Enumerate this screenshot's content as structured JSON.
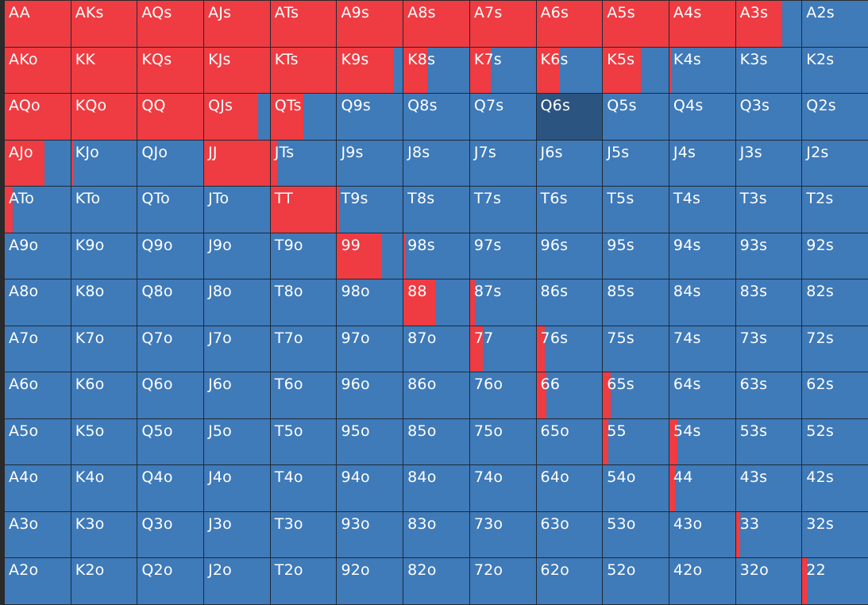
{
  "colors": {
    "raise": "#ef3b42",
    "fold": "#3f7ab9",
    "selected": "#2c5480",
    "grid_line": "#1f2a36"
  },
  "selected_hand": "Q6s",
  "rows": [
    [
      {
        "hand": "AA",
        "raise": 1
      },
      {
        "hand": "AKs",
        "raise": 1
      },
      {
        "hand": "AQs",
        "raise": 1
      },
      {
        "hand": "AJs",
        "raise": 1
      },
      {
        "hand": "ATs",
        "raise": 1
      },
      {
        "hand": "A9s",
        "raise": 1
      },
      {
        "hand": "A8s",
        "raise": 1
      },
      {
        "hand": "A7s",
        "raise": 1
      },
      {
        "hand": "A6s",
        "raise": 1
      },
      {
        "hand": "A5s",
        "raise": 1
      },
      {
        "hand": "A4s",
        "raise": 1
      },
      {
        "hand": "A3s",
        "raise": 0.71
      },
      {
        "hand": "A2s",
        "raise": 0
      }
    ],
    [
      {
        "hand": "AKo",
        "raise": 1
      },
      {
        "hand": "KK",
        "raise": 1
      },
      {
        "hand": "KQs",
        "raise": 1
      },
      {
        "hand": "KJs",
        "raise": 1
      },
      {
        "hand": "KTs",
        "raise": 1
      },
      {
        "hand": "K9s",
        "raise": 0.86
      },
      {
        "hand": "K8s",
        "raise": 0.36
      },
      {
        "hand": "K7s",
        "raise": 0.32
      },
      {
        "hand": "K6s",
        "raise": 0.36
      },
      {
        "hand": "K5s",
        "raise": 0.58
      },
      {
        "hand": "K4s",
        "raise": 0.02
      },
      {
        "hand": "K3s",
        "raise": 0
      },
      {
        "hand": "K2s",
        "raise": 0
      }
    ],
    [
      {
        "hand": "AQo",
        "raise": 1
      },
      {
        "hand": "KQo",
        "raise": 1
      },
      {
        "hand": "QQ",
        "raise": 1
      },
      {
        "hand": "QJs",
        "raise": 0.82
      },
      {
        "hand": "QTs",
        "raise": 0.5
      },
      {
        "hand": "Q9s",
        "raise": 0
      },
      {
        "hand": "Q8s",
        "raise": 0
      },
      {
        "hand": "Q7s",
        "raise": 0
      },
      {
        "hand": "Q6s",
        "raise": 0
      },
      {
        "hand": "Q5s",
        "raise": 0
      },
      {
        "hand": "Q4s",
        "raise": 0
      },
      {
        "hand": "Q3s",
        "raise": 0
      },
      {
        "hand": "Q2s",
        "raise": 0
      }
    ],
    [
      {
        "hand": "AJo",
        "raise": 0.6
      },
      {
        "hand": "KJo",
        "raise": 0.04
      },
      {
        "hand": "QJo",
        "raise": 0
      },
      {
        "hand": "JJ",
        "raise": 1
      },
      {
        "hand": "JTs",
        "raise": 0.11
      },
      {
        "hand": "J9s",
        "raise": 0
      },
      {
        "hand": "J8s",
        "raise": 0
      },
      {
        "hand": "J7s",
        "raise": 0
      },
      {
        "hand": "J6s",
        "raise": 0
      },
      {
        "hand": "J5s",
        "raise": 0
      },
      {
        "hand": "J4s",
        "raise": 0
      },
      {
        "hand": "J3s",
        "raise": 0
      },
      {
        "hand": "J2s",
        "raise": 0
      }
    ],
    [
      {
        "hand": "ATo",
        "raise": 0.12
      },
      {
        "hand": "KTo",
        "raise": 0
      },
      {
        "hand": "QTo",
        "raise": 0
      },
      {
        "hand": "JTo",
        "raise": 0
      },
      {
        "hand": "TT",
        "raise": 0.99
      },
      {
        "hand": "T9s",
        "raise": 0.04
      },
      {
        "hand": "T8s",
        "raise": 0
      },
      {
        "hand": "T7s",
        "raise": 0
      },
      {
        "hand": "T6s",
        "raise": 0
      },
      {
        "hand": "T5s",
        "raise": 0
      },
      {
        "hand": "T4s",
        "raise": 0
      },
      {
        "hand": "T3s",
        "raise": 0
      },
      {
        "hand": "T2s",
        "raise": 0
      }
    ],
    [
      {
        "hand": "A9o",
        "raise": 0
      },
      {
        "hand": "K9o",
        "raise": 0
      },
      {
        "hand": "Q9o",
        "raise": 0
      },
      {
        "hand": "J9o",
        "raise": 0
      },
      {
        "hand": "T9o",
        "raise": 0
      },
      {
        "hand": "99",
        "raise": 0.68
      },
      {
        "hand": "98s",
        "raise": 0.02
      },
      {
        "hand": "97s",
        "raise": 0
      },
      {
        "hand": "96s",
        "raise": 0
      },
      {
        "hand": "95s",
        "raise": 0
      },
      {
        "hand": "94s",
        "raise": 0
      },
      {
        "hand": "93s",
        "raise": 0
      },
      {
        "hand": "92s",
        "raise": 0
      }
    ],
    [
      {
        "hand": "A8o",
        "raise": 0
      },
      {
        "hand": "K8o",
        "raise": 0
      },
      {
        "hand": "Q8o",
        "raise": 0
      },
      {
        "hand": "J8o",
        "raise": 0
      },
      {
        "hand": "T8o",
        "raise": 0
      },
      {
        "hand": "98o",
        "raise": 0
      },
      {
        "hand": "88",
        "raise": 0.48
      },
      {
        "hand": "87s",
        "raise": 0.08
      },
      {
        "hand": "86s",
        "raise": 0
      },
      {
        "hand": "85s",
        "raise": 0
      },
      {
        "hand": "84s",
        "raise": 0
      },
      {
        "hand": "83s",
        "raise": 0
      },
      {
        "hand": "82s",
        "raise": 0
      }
    ],
    [
      {
        "hand": "A7o",
        "raise": 0
      },
      {
        "hand": "K7o",
        "raise": 0
      },
      {
        "hand": "Q7o",
        "raise": 0
      },
      {
        "hand": "J7o",
        "raise": 0
      },
      {
        "hand": "T7o",
        "raise": 0
      },
      {
        "hand": "97o",
        "raise": 0
      },
      {
        "hand": "87o",
        "raise": 0
      },
      {
        "hand": "77",
        "raise": 0.2
      },
      {
        "hand": "76s",
        "raise": 0.13
      },
      {
        "hand": "75s",
        "raise": 0
      },
      {
        "hand": "74s",
        "raise": 0
      },
      {
        "hand": "73s",
        "raise": 0
      },
      {
        "hand": "72s",
        "raise": 0
      }
    ],
    [
      {
        "hand": "A6o",
        "raise": 0
      },
      {
        "hand": "K6o",
        "raise": 0
      },
      {
        "hand": "Q6o",
        "raise": 0
      },
      {
        "hand": "J6o",
        "raise": 0
      },
      {
        "hand": "T6o",
        "raise": 0
      },
      {
        "hand": "96o",
        "raise": 0
      },
      {
        "hand": "86o",
        "raise": 0
      },
      {
        "hand": "76o",
        "raise": 0
      },
      {
        "hand": "66",
        "raise": 0.15
      },
      {
        "hand": "65s",
        "raise": 0.12
      },
      {
        "hand": "64s",
        "raise": 0
      },
      {
        "hand": "63s",
        "raise": 0
      },
      {
        "hand": "62s",
        "raise": 0
      }
    ],
    [
      {
        "hand": "A5o",
        "raise": 0
      },
      {
        "hand": "K5o",
        "raise": 0
      },
      {
        "hand": "Q5o",
        "raise": 0
      },
      {
        "hand": "J5o",
        "raise": 0
      },
      {
        "hand": "T5o",
        "raise": 0
      },
      {
        "hand": "95o",
        "raise": 0
      },
      {
        "hand": "85o",
        "raise": 0
      },
      {
        "hand": "75o",
        "raise": 0
      },
      {
        "hand": "65o",
        "raise": 0
      },
      {
        "hand": "55",
        "raise": 0.08
      },
      {
        "hand": "54s",
        "raise": 0.12
      },
      {
        "hand": "53s",
        "raise": 0
      },
      {
        "hand": "52s",
        "raise": 0
      }
    ],
    [
      {
        "hand": "A4o",
        "raise": 0
      },
      {
        "hand": "K4o",
        "raise": 0
      },
      {
        "hand": "Q4o",
        "raise": 0
      },
      {
        "hand": "J4o",
        "raise": 0
      },
      {
        "hand": "T4o",
        "raise": 0
      },
      {
        "hand": "94o",
        "raise": 0
      },
      {
        "hand": "84o",
        "raise": 0
      },
      {
        "hand": "74o",
        "raise": 0
      },
      {
        "hand": "64o",
        "raise": 0
      },
      {
        "hand": "54o",
        "raise": 0
      },
      {
        "hand": "44",
        "raise": 0.08
      },
      {
        "hand": "43s",
        "raise": 0
      },
      {
        "hand": "42s",
        "raise": 0
      }
    ],
    [
      {
        "hand": "A3o",
        "raise": 0
      },
      {
        "hand": "K3o",
        "raise": 0
      },
      {
        "hand": "Q3o",
        "raise": 0
      },
      {
        "hand": "J3o",
        "raise": 0
      },
      {
        "hand": "T3o",
        "raise": 0
      },
      {
        "hand": "93o",
        "raise": 0
      },
      {
        "hand": "83o",
        "raise": 0
      },
      {
        "hand": "73o",
        "raise": 0
      },
      {
        "hand": "63o",
        "raise": 0
      },
      {
        "hand": "53o",
        "raise": 0
      },
      {
        "hand": "43o",
        "raise": 0
      },
      {
        "hand": "33",
        "raise": 0.07
      },
      {
        "hand": "32s",
        "raise": 0
      }
    ],
    [
      {
        "hand": "A2o",
        "raise": 0
      },
      {
        "hand": "K2o",
        "raise": 0
      },
      {
        "hand": "Q2o",
        "raise": 0
      },
      {
        "hand": "J2o",
        "raise": 0
      },
      {
        "hand": "T2o",
        "raise": 0
      },
      {
        "hand": "92o",
        "raise": 0
      },
      {
        "hand": "82o",
        "raise": 0
      },
      {
        "hand": "72o",
        "raise": 0
      },
      {
        "hand": "62o",
        "raise": 0
      },
      {
        "hand": "52o",
        "raise": 0
      },
      {
        "hand": "42o",
        "raise": 0
      },
      {
        "hand": "32o",
        "raise": 0
      },
      {
        "hand": "22",
        "raise": 0.08
      }
    ]
  ]
}
